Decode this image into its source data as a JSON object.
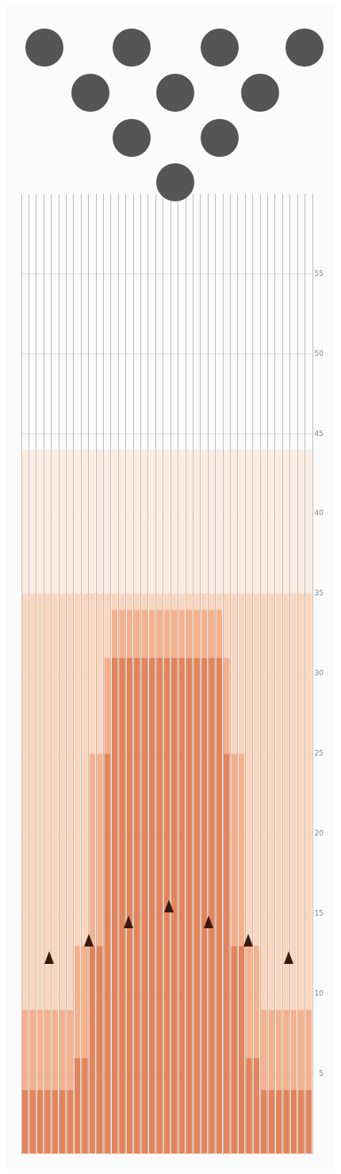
{
  "chart_data": {
    "type": "bar",
    "stacked": true,
    "categories": [
      null,
      null,
      null,
      null,
      null,
      null,
      null,
      null,
      null,
      null,
      null,
      null,
      null,
      null,
      null,
      null,
      null,
      null,
      null,
      null,
      null,
      null,
      null,
      null,
      null,
      null,
      null,
      null,
      null,
      null,
      null,
      null,
      null,
      null,
      null,
      null,
      null,
      null,
      null
    ],
    "series": [
      {
        "color": "#e3845a",
        "values": [
          4,
          4,
          4,
          4,
          4,
          4,
          4,
          6,
          6,
          13,
          13,
          25,
          31,
          31,
          31,
          31,
          31,
          31,
          31,
          31,
          31,
          31,
          31,
          31,
          31,
          31,
          31,
          25,
          13,
          13,
          6,
          6,
          4,
          4,
          4,
          4,
          4,
          4,
          4
        ]
      },
      {
        "color": "#f6b08a",
        "values": [
          5,
          5,
          5,
          5,
          5,
          5,
          5,
          7,
          7,
          12,
          12,
          6,
          3,
          3,
          3,
          3,
          3,
          3,
          3,
          3,
          3,
          3,
          3,
          3,
          3,
          3,
          3,
          6,
          12,
          12,
          7,
          7,
          5,
          5,
          5,
          5,
          5,
          5,
          5
        ]
      },
      {
        "color": "#fcd5bd",
        "values": [
          26,
          26,
          26,
          26,
          26,
          26,
          26,
          22,
          22,
          10,
          10,
          4,
          1,
          1,
          1,
          1,
          1,
          1,
          1,
          1,
          1,
          1,
          1,
          1,
          1,
          1,
          1,
          4,
          10,
          10,
          22,
          22,
          26,
          26,
          26,
          26,
          26,
          26,
          26
        ]
      },
      {
        "color": "#fdebe0",
        "values": [
          9,
          9,
          9,
          9,
          9,
          9,
          9,
          9,
          9,
          9,
          9,
          9,
          9,
          9,
          9,
          9,
          9,
          9,
          9,
          9,
          9,
          9,
          9,
          9,
          9,
          9,
          9,
          9,
          9,
          9,
          9,
          9,
          9,
          9,
          9,
          9,
          9,
          9,
          9
        ]
      }
    ],
    "ylim": [
      0,
      60
    ],
    "yticks": [
      5,
      10,
      15,
      20,
      25,
      30,
      35,
      40,
      45,
      50,
      55
    ],
    "grid": true,
    "legend": false
  }
}
